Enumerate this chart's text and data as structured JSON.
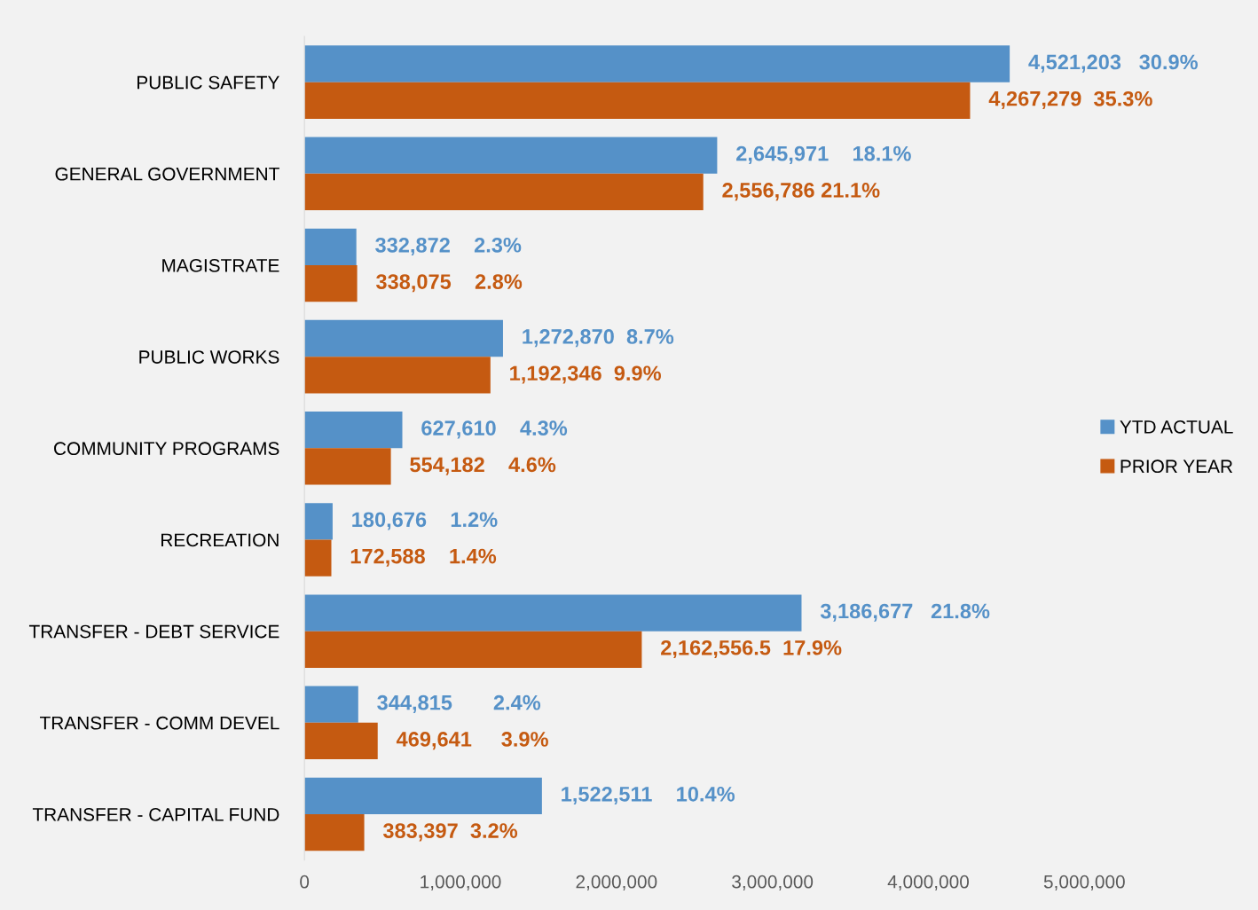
{
  "chart_data": {
    "type": "bar",
    "orientation": "horizontal",
    "categories": [
      "PUBLIC SAFETY",
      "GENERAL GOVERNMENT",
      "MAGISTRATE",
      "PUBLIC WORKS",
      "COMMUNITY PROGRAMS",
      "RECREATION",
      "TRANSFER - DEBT SERVICE",
      "TRANSFER - COMM DEVEL",
      "TRANSFER - CAPITAL FUND"
    ],
    "series": [
      {
        "name": "YTD ACTUAL",
        "color": "#5591c8",
        "values": [
          4521203,
          2645971,
          332872,
          1272870,
          627610,
          180676,
          3186677,
          344815,
          1522511
        ],
        "value_labels": [
          "4,521,203   30.9%",
          "2,645,971    18.1%",
          "332,872    2.3%",
          "1,272,870  8.7%",
          "627,610    4.3%",
          "180,676    1.2%",
          "3,186,677   21.8%",
          "344,815       2.4%",
          "1,522,511    10.4%"
        ]
      },
      {
        "name": "PRIOR YEAR",
        "color": "#c55a11",
        "values": [
          4267279,
          2556786,
          338075,
          1192346,
          554182,
          172588,
          2162556.5,
          469641,
          383397
        ],
        "value_labels": [
          "4,267,279  35.3%",
          "2,556,786 21.1%",
          "338,075    2.8%",
          "1,192,346  9.9%",
          "554,182    4.6%",
          "172,588    1.4%",
          "2,162,556.5  17.9%",
          "469,641     3.9%",
          "383,397  3.2%"
        ]
      }
    ],
    "xlim": [
      0,
      5000000
    ],
    "xticks": [
      {
        "value": 0,
        "label": "0"
      },
      {
        "value": 1000000,
        "label": "1,000,000"
      },
      {
        "value": 2000000,
        "label": "2,000,000"
      },
      {
        "value": 3000000,
        "label": "3,000,000"
      },
      {
        "value": 4000000,
        "label": "4,000,000"
      },
      {
        "value": 5000000,
        "label": "5,000,000"
      }
    ],
    "grid": false,
    "legend": "right"
  }
}
